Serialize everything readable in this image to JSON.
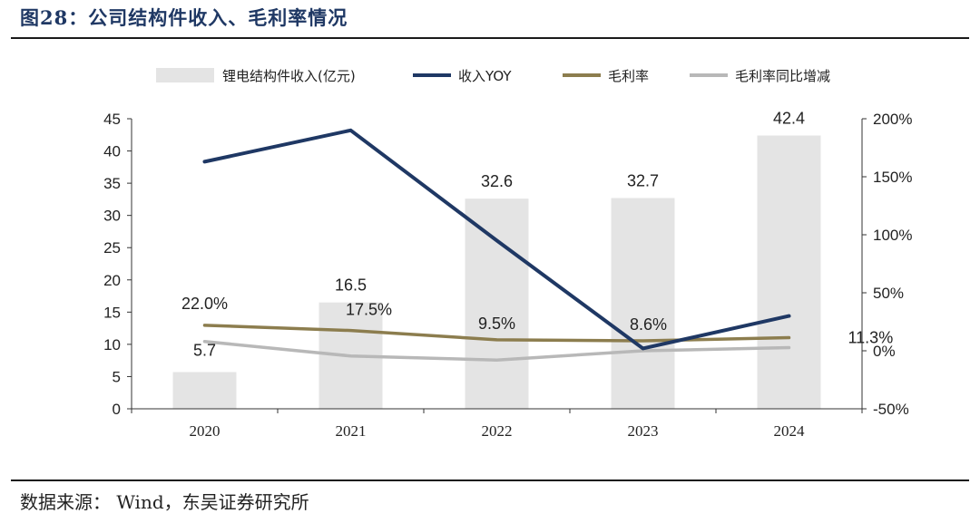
{
  "title": "图28：公司结构件收入、毛利率情况",
  "source": "数据来源：  Wind，东吴证券研究所",
  "chart_data": {
    "type": "bar",
    "categories": [
      "2020",
      "2021",
      "2022",
      "2023",
      "2024"
    ],
    "bar_series": {
      "name": "锂电结构件收入(亿元)",
      "values": [
        5.7,
        16.5,
        32.6,
        32.7,
        42.4
      ],
      "labels": [
        "5.7",
        "16.5",
        "32.6",
        "32.7",
        "42.4"
      ],
      "color": "#e4e4e4"
    },
    "line_series": [
      {
        "name": "收入YOY",
        "values": [
          163,
          190,
          95,
          2,
          30
        ],
        "color": "#1f3864",
        "axis": "right"
      },
      {
        "name": "毛利率",
        "values": [
          22.0,
          17.5,
          9.5,
          8.6,
          11.3
        ],
        "labels": [
          "22.0%",
          "17.5%",
          "9.5%",
          "8.6%",
          "11.3%"
        ],
        "color": "#8c7d4e",
        "axis": "right"
      },
      {
        "name": "毛利率同比增减",
        "values": [
          8.0,
          -4.5,
          -8.0,
          0,
          2.7
        ],
        "color": "#b8b8b8",
        "axis": "right"
      }
    ],
    "y_left": {
      "min": 0,
      "max": 45,
      "ticks": [
        0,
        5,
        10,
        15,
        20,
        25,
        30,
        35,
        40,
        45
      ]
    },
    "y_right": {
      "min": -50,
      "max": 200,
      "ticks": [
        "-50%",
        "0%",
        "50%",
        "100%",
        "150%",
        "200%"
      ]
    },
    "legend_position": "top"
  }
}
